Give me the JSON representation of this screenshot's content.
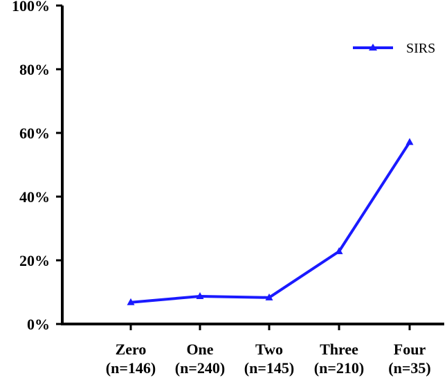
{
  "chart_data": {
    "type": "line",
    "categories": [
      "Zero",
      "One",
      "Two",
      "Three",
      "Four"
    ],
    "category_sublabels": [
      "(n=146)",
      "(n=240)",
      "(n=145)",
      "(n=210)",
      "(n=35)"
    ],
    "series": [
      {
        "name": "SIRS",
        "values": [
          6.8,
          8.7,
          8.3,
          22.8,
          57.1
        ],
        "color": "#1a1aff",
        "marker": "triangle"
      }
    ],
    "y_ticks": [
      "0%",
      "20%",
      "40%",
      "60%",
      "80%",
      "100%"
    ],
    "ylim": [
      0,
      100
    ],
    "y_unit": "percent",
    "grid": false,
    "legend_position": "top-right"
  }
}
